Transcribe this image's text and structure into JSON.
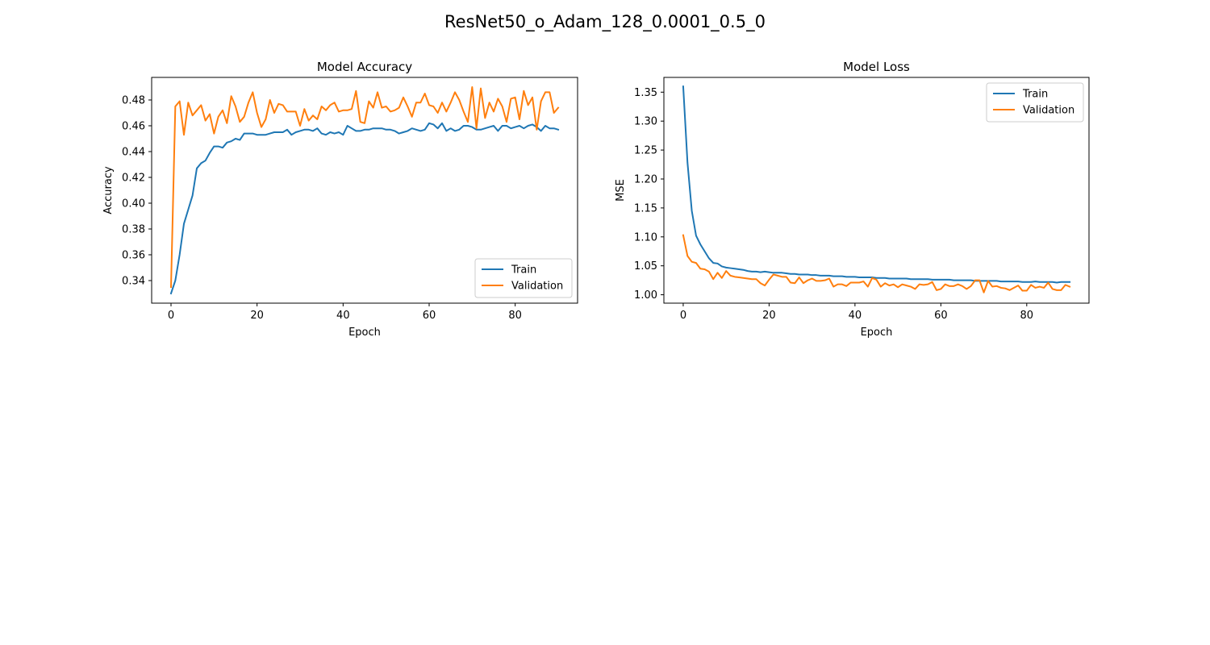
{
  "figure": {
    "suptitle": "ResNet50_o_Adam_128_0.0001_0.5_0"
  },
  "colors": {
    "train": "#1f77b4",
    "validation": "#ff7f0e"
  },
  "chart_data": [
    {
      "type": "line",
      "title": "Model Accuracy",
      "xlabel": "Epoch",
      "ylabel": "Accuracy",
      "xlim": [
        -4.5,
        94.5
      ],
      "ylim": [
        0.3225,
        0.4975
      ],
      "xticks": [
        0,
        20,
        40,
        60,
        80
      ],
      "yticks": [
        0.34,
        0.36,
        0.38,
        0.4,
        0.42,
        0.44,
        0.46,
        0.48
      ],
      "ytick_labels": [
        "0.34",
        "0.36",
        "0.38",
        "0.40",
        "0.42",
        "0.44",
        "0.46",
        "0.48"
      ],
      "grid": false,
      "legend": "lower-right",
      "series": [
        {
          "name": "Train",
          "values": [
            0.33,
            0.34,
            0.36,
            0.384,
            0.395,
            0.406,
            0.427,
            0.431,
            0.433,
            0.439,
            0.444,
            0.444,
            0.443,
            0.447,
            0.448,
            0.45,
            0.449,
            0.454,
            0.454,
            0.454,
            0.453,
            0.453,
            0.453,
            0.454,
            0.455,
            0.455,
            0.455,
            0.457,
            0.453,
            0.455,
            0.456,
            0.457,
            0.457,
            0.456,
            0.458,
            0.454,
            0.453,
            0.455,
            0.454,
            0.455,
            0.453,
            0.46,
            0.458,
            0.456,
            0.456,
            0.457,
            0.457,
            0.458,
            0.458,
            0.458,
            0.457,
            0.457,
            0.456,
            0.454,
            0.455,
            0.456,
            0.458,
            0.457,
            0.456,
            0.457,
            0.462,
            0.461,
            0.458,
            0.462,
            0.456,
            0.458,
            0.456,
            0.457,
            0.46,
            0.46,
            0.459,
            0.457,
            0.457,
            0.458,
            0.459,
            0.46,
            0.456,
            0.46,
            0.46,
            0.458,
            0.459,
            0.46,
            0.458,
            0.46,
            0.461,
            0.459,
            0.456,
            0.46,
            0.458,
            0.458,
            0.457
          ]
        },
        {
          "name": "Validation",
          "values": [
            0.335,
            0.475,
            0.479,
            0.453,
            0.478,
            0.468,
            0.472,
            0.476,
            0.464,
            0.469,
            0.454,
            0.467,
            0.472,
            0.462,
            0.483,
            0.475,
            0.463,
            0.467,
            0.478,
            0.486,
            0.47,
            0.459,
            0.465,
            0.48,
            0.47,
            0.477,
            0.476,
            0.471,
            0.471,
            0.471,
            0.46,
            0.473,
            0.464,
            0.468,
            0.465,
            0.475,
            0.472,
            0.476,
            0.478,
            0.471,
            0.472,
            0.472,
            0.473,
            0.487,
            0.463,
            0.462,
            0.479,
            0.474,
            0.486,
            0.474,
            0.475,
            0.471,
            0.472,
            0.474,
            0.482,
            0.475,
            0.467,
            0.478,
            0.478,
            0.485,
            0.476,
            0.475,
            0.47,
            0.478,
            0.471,
            0.478,
            0.486,
            0.48,
            0.471,
            0.463,
            0.49,
            0.458,
            0.489,
            0.466,
            0.478,
            0.471,
            0.481,
            0.475,
            0.463,
            0.481,
            0.482,
            0.465,
            0.487,
            0.476,
            0.482,
            0.457,
            0.479,
            0.486,
            0.486,
            0.47,
            0.474
          ]
        }
      ]
    },
    {
      "type": "line",
      "title": "Model Loss",
      "xlabel": "Epoch",
      "ylabel": "MSE",
      "xlim": [
        -4.5,
        94.5
      ],
      "ylim": [
        0.9855,
        1.3755
      ],
      "xticks": [
        0,
        20,
        40,
        60,
        80
      ],
      "yticks": [
        1.0,
        1.05,
        1.1,
        1.15,
        1.2,
        1.25,
        1.3,
        1.35
      ],
      "ytick_labels": [
        "1.00",
        "1.05",
        "1.10",
        "1.15",
        "1.20",
        "1.25",
        "1.30",
        "1.35"
      ],
      "grid": false,
      "legend": "upper-right",
      "series": [
        {
          "name": "Train",
          "values": [
            1.36,
            1.228,
            1.145,
            1.102,
            1.087,
            1.075,
            1.063,
            1.055,
            1.054,
            1.049,
            1.047,
            1.046,
            1.045,
            1.044,
            1.043,
            1.041,
            1.04,
            1.04,
            1.039,
            1.04,
            1.039,
            1.038,
            1.038,
            1.038,
            1.037,
            1.036,
            1.036,
            1.035,
            1.035,
            1.035,
            1.034,
            1.034,
            1.033,
            1.033,
            1.033,
            1.032,
            1.032,
            1.032,
            1.031,
            1.031,
            1.031,
            1.03,
            1.03,
            1.03,
            1.03,
            1.029,
            1.029,
            1.029,
            1.028,
            1.028,
            1.028,
            1.028,
            1.028,
            1.027,
            1.027,
            1.027,
            1.027,
            1.027,
            1.026,
            1.026,
            1.026,
            1.026,
            1.026,
            1.025,
            1.025,
            1.025,
            1.025,
            1.025,
            1.024,
            1.024,
            1.024,
            1.024,
            1.024,
            1.024,
            1.023,
            1.023,
            1.023,
            1.023,
            1.023,
            1.022,
            1.022,
            1.022,
            1.023,
            1.022,
            1.022,
            1.022,
            1.022,
            1.021,
            1.022,
            1.022,
            1.022
          ]
        },
        {
          "name": "Validation",
          "values": [
            1.103,
            1.067,
            1.057,
            1.055,
            1.045,
            1.044,
            1.04,
            1.027,
            1.038,
            1.029,
            1.041,
            1.033,
            1.031,
            1.03,
            1.029,
            1.028,
            1.027,
            1.027,
            1.02,
            1.016,
            1.026,
            1.035,
            1.033,
            1.031,
            1.031,
            1.021,
            1.02,
            1.03,
            1.02,
            1.025,
            1.028,
            1.024,
            1.024,
            1.025,
            1.028,
            1.014,
            1.018,
            1.018,
            1.015,
            1.021,
            1.021,
            1.021,
            1.023,
            1.014,
            1.029,
            1.026,
            1.014,
            1.02,
            1.016,
            1.018,
            1.013,
            1.018,
            1.016,
            1.014,
            1.01,
            1.018,
            1.017,
            1.018,
            1.022,
            1.008,
            1.01,
            1.018,
            1.015,
            1.015,
            1.018,
            1.015,
            1.01,
            1.015,
            1.025,
            1.025,
            1.004,
            1.024,
            1.014,
            1.015,
            1.012,
            1.011,
            1.008,
            1.012,
            1.016,
            1.007,
            1.007,
            1.017,
            1.012,
            1.014,
            1.012,
            1.021,
            1.01,
            1.008,
            1.008,
            1.017,
            1.014
          ]
        }
      ]
    }
  ]
}
